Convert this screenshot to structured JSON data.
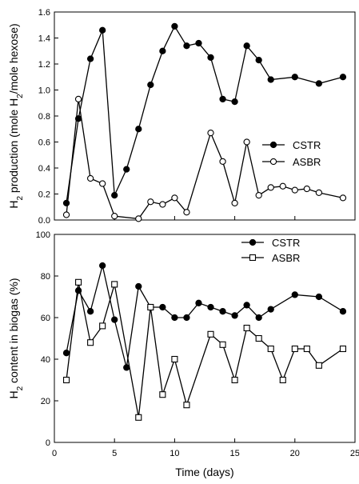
{
  "chart_data": [
    {
      "type": "line",
      "xlabel": "",
      "ylabel_parts": [
        "H",
        "2",
        " production (mole H",
        "2",
        "/mole hexose)"
      ],
      "xlim": [
        0,
        25
      ],
      "ylim": [
        0,
        1.6
      ],
      "xticks": [
        0,
        5,
        10,
        15,
        20,
        25
      ],
      "xticks_shown": false,
      "yticks": [
        0.0,
        0.2,
        0.4,
        0.6,
        0.8,
        1.0,
        1.2,
        1.4,
        1.6
      ],
      "ytick_labels": [
        "0.0",
        "0.2",
        "0.4",
        "0.6",
        "0.8",
        "1.0",
        "1.2",
        "1.4",
        "1.6"
      ],
      "grid": false,
      "legend_position": "middle-right",
      "series": [
        {
          "name": "CSTR",
          "marker": "filled-circle",
          "color": "#000000",
          "x": [
            1,
            2,
            3,
            4,
            5,
            6,
            7,
            8,
            9,
            10,
            11,
            12,
            13,
            14,
            15,
            16,
            17,
            18,
            20,
            22,
            24
          ],
          "y": [
            0.13,
            0.78,
            1.24,
            1.46,
            0.19,
            0.39,
            0.7,
            1.04,
            1.3,
            1.49,
            1.34,
            1.36,
            1.25,
            0.93,
            0.91,
            1.34,
            1.23,
            1.08,
            1.1,
            1.05,
            1.1
          ]
        },
        {
          "name": "ASBR",
          "marker": "open-circle",
          "color": "#000000",
          "x": [
            1,
            2,
            3,
            4,
            5,
            7,
            8,
            9,
            10,
            11,
            13,
            14,
            15,
            16,
            17,
            18,
            19,
            20,
            21,
            22,
            24
          ],
          "y": [
            0.04,
            0.93,
            0.32,
            0.28,
            0.03,
            0.01,
            0.14,
            0.12,
            0.17,
            0.06,
            0.67,
            0.45,
            0.13,
            0.6,
            0.19,
            0.25,
            0.26,
            0.23,
            0.24,
            0.21,
            0.17
          ]
        }
      ]
    },
    {
      "type": "line",
      "xlabel": "Time (days)",
      "ylabel_parts": [
        "H",
        "2",
        " content in biogas (%)"
      ],
      "xlim": [
        0,
        25
      ],
      "ylim": [
        0,
        100
      ],
      "xticks": [
        0,
        5,
        10,
        15,
        20,
        25
      ],
      "xtick_labels": [
        "0",
        "5",
        "10",
        "15",
        "20",
        "25"
      ],
      "xticks_shown": true,
      "yticks": [
        0,
        20,
        40,
        60,
        80,
        100
      ],
      "ytick_labels": [
        "0",
        "20",
        "40",
        "60",
        "80",
        "100"
      ],
      "grid": false,
      "legend_position": "top-right",
      "series": [
        {
          "name": "CSTR",
          "marker": "filled-circle",
          "color": "#000000",
          "x": [
            1,
            2,
            3,
            4,
            5,
            6,
            7,
            8,
            9,
            10,
            11,
            12,
            13,
            14,
            15,
            16,
            17,
            18,
            20,
            22,
            24
          ],
          "y": [
            43,
            73,
            63,
            85,
            59,
            36,
            75,
            65,
            65,
            60,
            60,
            67,
            65,
            63,
            61,
            66,
            60,
            64,
            71,
            70,
            63
          ]
        },
        {
          "name": "ASBR",
          "marker": "open-square",
          "color": "#000000",
          "x": [
            1,
            2,
            3,
            4,
            5,
            7,
            8,
            9,
            10,
            11,
            13,
            14,
            15,
            16,
            17,
            18,
            19,
            20,
            21,
            22,
            24
          ],
          "y": [
            30,
            77,
            48,
            56,
            76,
            12,
            65,
            23,
            40,
            18,
            52,
            47,
            30,
            55,
            50,
            45,
            30,
            45,
            45,
            37,
            45
          ]
        }
      ]
    }
  ]
}
